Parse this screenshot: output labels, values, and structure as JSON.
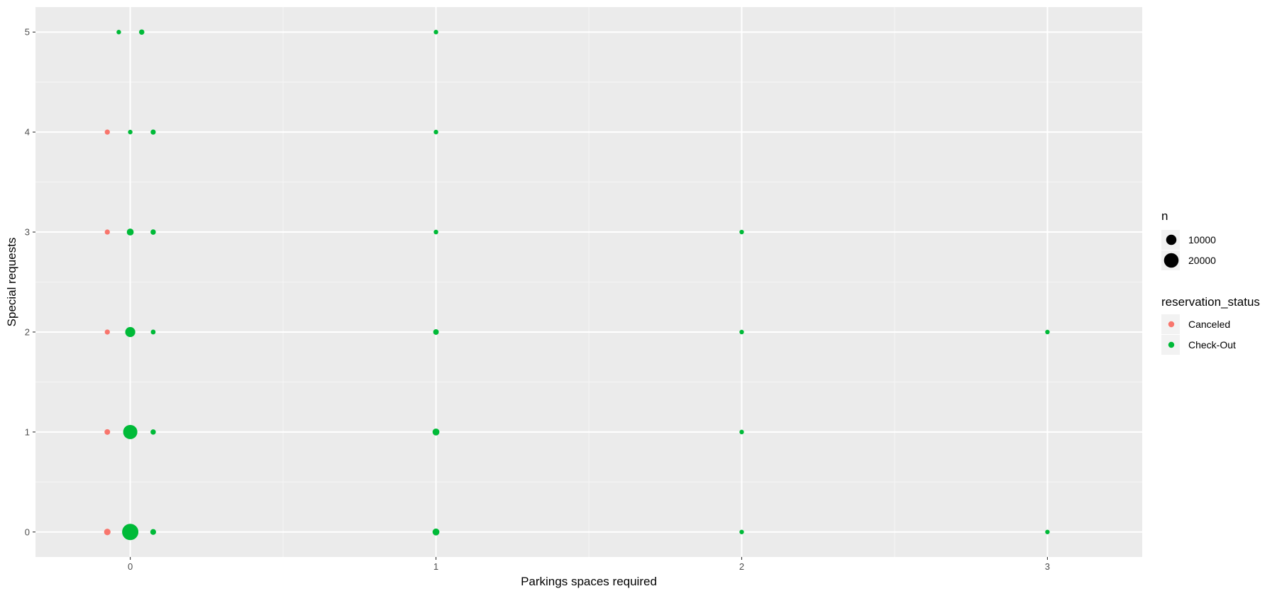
{
  "chart_data": {
    "type": "scatter",
    "xlabel": "Parkings spaces required",
    "ylabel": "Special requests",
    "x_ticks": [
      "0",
      "1",
      "2",
      "3"
    ],
    "y_ticks": [
      "0",
      "1",
      "2",
      "3",
      "4",
      "5"
    ],
    "xlim": [
      -0.31,
      3.31
    ],
    "ylim": [
      -0.25,
      5.25
    ],
    "grid": true,
    "legend_position": "right",
    "size_legend": {
      "title": "n",
      "items": [
        {
          "label": "10000",
          "value": 10000
        },
        {
          "label": "20000",
          "value": 20000
        }
      ]
    },
    "color_legend": {
      "title": "reservation_status",
      "items": [
        {
          "label": "Canceled",
          "color": "#F8766D"
        },
        {
          "label": "Check-Out",
          "color": "#00BA38"
        }
      ]
    },
    "series": [
      {
        "name": "Canceled",
        "color": "#F8766D",
        "points": [
          {
            "x": 0,
            "y": 0,
            "n": 4000
          },
          {
            "x": 0,
            "y": 1,
            "n": 3000
          },
          {
            "x": 0,
            "y": 2,
            "n": 2500
          },
          {
            "x": 0,
            "y": 3,
            "n": 2500
          },
          {
            "x": 0,
            "y": 4,
            "n": 2500
          }
        ]
      },
      {
        "name": "Check-Out",
        "color": "#00BA38",
        "points": [
          {
            "x": 0,
            "y": 0,
            "n": 25000
          },
          {
            "x": 0,
            "y": 1,
            "n": 19000
          },
          {
            "x": 0,
            "y": 2,
            "n": 9500
          },
          {
            "x": 0,
            "y": 3,
            "n": 4500
          },
          {
            "x": 0,
            "y": 4,
            "n": 800
          },
          {
            "x": 0,
            "y": 5,
            "n": 100
          },
          {
            "x": 0,
            "y": 0,
            "n": 3200
          },
          {
            "x": 0,
            "y": 1,
            "n": 2700
          },
          {
            "x": 0,
            "y": 2,
            "n": 2200
          },
          {
            "x": 0,
            "y": 3,
            "n": 2700
          },
          {
            "x": 0,
            "y": 4,
            "n": 2500
          },
          {
            "x": 0,
            "y": 5,
            "n": 2700
          },
          {
            "x": 1,
            "y": 0,
            "n": 4500
          },
          {
            "x": 1,
            "y": 1,
            "n": 4500
          },
          {
            "x": 1,
            "y": 2,
            "n": 3000
          },
          {
            "x": 1,
            "y": 3,
            "n": 2000
          },
          {
            "x": 1,
            "y": 4,
            "n": 1700
          },
          {
            "x": 1,
            "y": 5,
            "n": 1000
          },
          {
            "x": 2,
            "y": 0,
            "n": 1000
          },
          {
            "x": 2,
            "y": 1,
            "n": 1500
          },
          {
            "x": 2,
            "y": 2,
            "n": 1200
          },
          {
            "x": 2,
            "y": 3,
            "n": 500
          },
          {
            "x": 3,
            "y": 0,
            "n": 1000
          },
          {
            "x": 3,
            "y": 2,
            "n": 400
          }
        ]
      }
    ]
  }
}
